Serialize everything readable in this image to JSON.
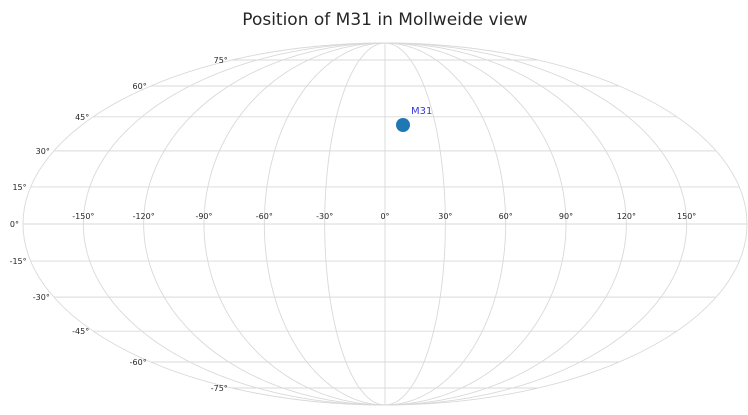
{
  "chart_data": {
    "type": "scatter",
    "projection": "mollweide",
    "title": "Position of M31 in Mollweide view",
    "xlabel": "",
    "ylabel": "",
    "xlim": [
      -180,
      180
    ],
    "ylim": [
      -90,
      90
    ],
    "grid": true,
    "x_ticks": [
      -150,
      -120,
      -90,
      -60,
      -30,
      0,
      30,
      60,
      90,
      120,
      150
    ],
    "y_ticks": [
      -75,
      -60,
      -45,
      -30,
      -15,
      0,
      15,
      30,
      45,
      60,
      75
    ],
    "x_tick_labels": [
      "-150°",
      "-120°",
      "-90°",
      "-60°",
      "-30°",
      "0°",
      "30°",
      "60°",
      "90°",
      "120°",
      "150°"
    ],
    "y_tick_labels": [
      "-75°",
      "-60°",
      "-45°",
      "-30°",
      "-15°",
      "0°",
      "15°",
      "30°",
      "45°",
      "60°",
      "75°"
    ],
    "points": [
      {
        "label": "M31",
        "x": 10.7,
        "y": 41.3
      }
    ],
    "colors": {
      "point": "#1f77b4",
      "annotation": "#3a3ad9",
      "grid": "#d9d9d9",
      "text": "#262626"
    }
  }
}
